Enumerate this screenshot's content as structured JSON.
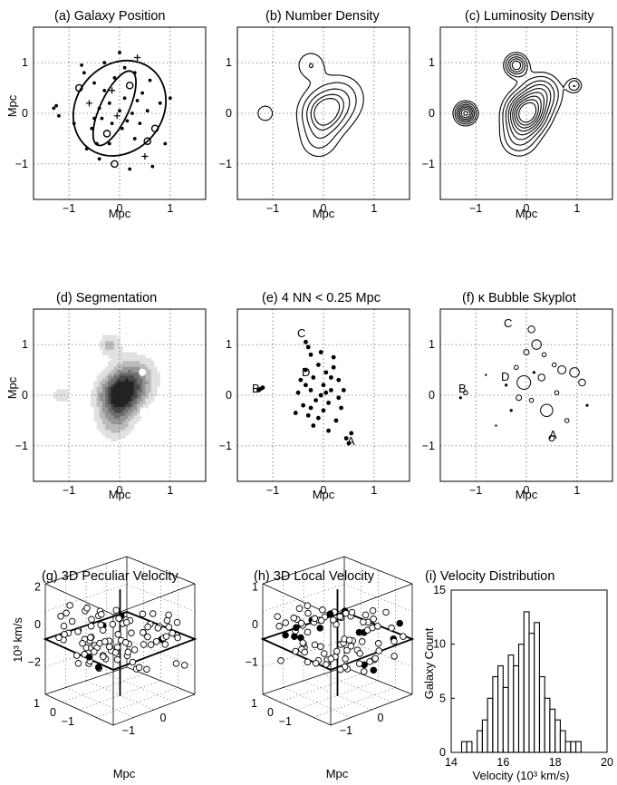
{
  "figure": {
    "panels": {
      "a": {
        "title": "(a)  Galaxy  Position",
        "xlabel": "Mpc",
        "ylabel": "Mpc"
      },
      "b": {
        "title": "(b)  Number Density",
        "xlabel": "Mpc"
      },
      "c": {
        "title": "(c)  Luminosity Density",
        "xlabel": "Mpc"
      },
      "d": {
        "title": "(d)  Segmentation",
        "xlabel": "Mpc",
        "ylabel": "Mpc"
      },
      "e": {
        "title": "(e)  4 NN < 0.25 Mpc",
        "xlabel": "Mpc",
        "annotations": {
          "A": "A",
          "B": "B",
          "C": "C",
          "D": "D"
        }
      },
      "f": {
        "title": "(f)  κ Bubble Skyplot",
        "xlabel": "Mpc",
        "annotations": {
          "A": "A",
          "B": "B",
          "C": "C",
          "D": "D"
        }
      },
      "g": {
        "title": "(g) 3D Peculiar Velocity",
        "xlabel": "Mpc",
        "ylabel": "10³ km/s"
      },
      "h": {
        "title": "(h) 3D Local Velocity",
        "xlabel": "Mpc"
      },
      "i": {
        "title": "(i) Velocity Distribution",
        "xlabel": "Velocity (10³ km/s)",
        "ylabel": "Galaxy Count"
      }
    },
    "ticks": {
      "pos_x": [
        "−1",
        "0",
        "1"
      ],
      "pos_y": [
        "1",
        "0",
        "−1"
      ],
      "g_z": [
        "2",
        "0",
        "−2"
      ],
      "h_z": [
        "1",
        "0",
        "−1"
      ],
      "base_a": [
        "1",
        "0",
        "−1"
      ],
      "base_b": [
        "−1",
        "0"
      ],
      "hist_x": [
        "14",
        "16",
        "18",
        "20"
      ],
      "hist_y": [
        "15",
        "10",
        "5",
        "0"
      ]
    }
  },
  "chart_data": [
    {
      "type": "scatter",
      "panel": "a",
      "title": "(a)  Galaxy  Position",
      "xlabel": "Mpc",
      "ylabel": "Mpc",
      "xlim": [
        -1.7,
        1.7
      ],
      "ylim": [
        -1.7,
        1.7
      ],
      "points": [
        [
          -1.25,
          0.15
        ],
        [
          -1.2,
          -0.05
        ],
        [
          -1.3,
          0.1
        ],
        [
          -0.8,
          0.5
        ],
        [
          -0.7,
          0.8
        ],
        [
          -0.6,
          0.2
        ],
        [
          -0.55,
          -0.3
        ],
        [
          -0.5,
          0.6
        ],
        [
          -0.45,
          -0.6
        ],
        [
          -0.4,
          0.1
        ],
        [
          -0.35,
          -0.1
        ],
        [
          -0.3,
          0.45
        ],
        [
          -0.25,
          -0.4
        ],
        [
          -0.2,
          0.2
        ],
        [
          -0.15,
          -0.2
        ],
        [
          -0.1,
          0.7
        ],
        [
          -0.05,
          -0.05
        ],
        [
          0.0,
          0.05
        ],
        [
          0.05,
          -0.3
        ],
        [
          0.1,
          0.3
        ],
        [
          0.15,
          -0.15
        ],
        [
          0.2,
          0.55
        ],
        [
          0.25,
          0.0
        ],
        [
          0.3,
          -0.5
        ],
        [
          0.35,
          0.25
        ],
        [
          0.4,
          -0.2
        ],
        [
          0.45,
          0.4
        ],
        [
          0.5,
          -0.85
        ],
        [
          0.55,
          0.05
        ],
        [
          0.6,
          0.65
        ],
        [
          0.7,
          -0.3
        ],
        [
          0.8,
          0.2
        ],
        [
          0.9,
          -0.6
        ],
        [
          1.0,
          0.3
        ],
        [
          -0.9,
          -0.2
        ],
        [
          -0.65,
          -0.7
        ],
        [
          -0.3,
          1.0
        ],
        [
          0.0,
          1.2
        ],
        [
          0.35,
          1.1
        ],
        [
          -0.1,
          -1.0
        ],
        [
          0.2,
          -1.1
        ],
        [
          -0.4,
          -0.9
        ],
        [
          0.65,
          -1.05
        ],
        [
          -0.75,
          0.95
        ],
        [
          0.1,
          0.9
        ],
        [
          -0.2,
          -0.6
        ],
        [
          0.3,
          0.8
        ],
        [
          -0.5,
          -0.1
        ],
        [
          0.55,
          -0.55
        ],
        [
          -0.15,
          0.45
        ]
      ],
      "ellipses": [
        {
          "cx": 0.0,
          "cy": 0.1,
          "rx": 1.0,
          "ry": 0.85,
          "angle_deg": 50
        },
        {
          "cx": -0.1,
          "cy": 0.1,
          "rx": 0.8,
          "ry": 0.28,
          "angle_deg": 65
        }
      ]
    },
    {
      "type": "contour",
      "panel": "b",
      "title": "(b)  Number Density",
      "xlim": [
        -1.7,
        1.7
      ],
      "ylim": [
        -1.7,
        1.7
      ],
      "peaks": [
        {
          "x": 0.0,
          "y": 0.0,
          "amp": 1.0,
          "s": 0.28
        },
        {
          "x": 0.35,
          "y": 0.3,
          "amp": 0.5,
          "s": 0.3
        },
        {
          "x": -0.25,
          "y": 0.95,
          "amp": 0.35,
          "s": 0.2
        },
        {
          "x": -1.15,
          "y": 0.0,
          "amp": 0.3,
          "s": 0.14
        },
        {
          "x": -0.1,
          "y": -0.55,
          "amp": 0.35,
          "s": 0.25
        }
      ],
      "levels": [
        0.18,
        0.35,
        0.55,
        0.75,
        0.9
      ]
    },
    {
      "type": "contour",
      "panel": "c",
      "title": "(c)  Luminosity Density",
      "xlim": [
        -1.7,
        1.7
      ],
      "ylim": [
        -1.7,
        1.7
      ],
      "peaks": [
        {
          "x": 0.0,
          "y": 0.0,
          "amp": 1.0,
          "s": 0.25
        },
        {
          "x": 0.3,
          "y": 0.4,
          "amp": 0.45,
          "s": 0.25
        },
        {
          "x": -1.2,
          "y": 0.0,
          "amp": 0.75,
          "s": 0.13
        },
        {
          "x": -0.2,
          "y": 0.95,
          "amp": 0.6,
          "s": 0.14
        },
        {
          "x": 0.95,
          "y": 0.55,
          "amp": 0.3,
          "s": 0.1
        },
        {
          "x": -0.15,
          "y": -0.5,
          "amp": 0.3,
          "s": 0.25
        }
      ],
      "levels": [
        0.12,
        0.2,
        0.3,
        0.4,
        0.5,
        0.6,
        0.7,
        0.8,
        0.9
      ]
    },
    {
      "type": "heatmap",
      "panel": "d",
      "title": "(d)  Segmentation",
      "xlim": [
        -1.7,
        1.7
      ],
      "ylim": [
        -1.7,
        1.7
      ],
      "peaks": [
        {
          "x": 0.0,
          "y": 0.0,
          "amp": 1.0,
          "s": 0.28
        },
        {
          "x": 0.3,
          "y": 0.35,
          "amp": 0.5,
          "s": 0.3
        },
        {
          "x": -0.2,
          "y": 1.0,
          "amp": 0.35,
          "s": 0.15
        },
        {
          "x": -1.15,
          "y": 0.0,
          "amp": 0.3,
          "s": 0.12
        },
        {
          "x": -0.1,
          "y": -0.55,
          "amp": 0.35,
          "s": 0.25
        }
      ],
      "levels": [
        0.15,
        0.3,
        0.45,
        0.6,
        0.75,
        0.9
      ]
    },
    {
      "type": "scatter",
      "panel": "e",
      "title": "(e)  4 NN < 0.25 Mpc",
      "xlim": [
        -1.7,
        1.7
      ],
      "ylim": [
        -1.7,
        1.7
      ],
      "points": [
        [
          -1.25,
          0.12
        ],
        [
          -1.2,
          0.15
        ],
        [
          -1.28,
          0.1
        ],
        [
          -0.35,
          1.05
        ],
        [
          -0.3,
          0.95
        ],
        [
          -0.25,
          0.8
        ],
        [
          0.45,
          -0.85
        ],
        [
          0.5,
          -0.95
        ],
        [
          0.55,
          -0.75
        ],
        [
          -0.45,
          0.3
        ],
        [
          -0.4,
          -0.2
        ],
        [
          -0.35,
          0.5
        ],
        [
          -0.3,
          -0.4
        ],
        [
          -0.25,
          0.1
        ],
        [
          -0.2,
          0.35
        ],
        [
          -0.15,
          -0.1
        ],
        [
          -0.1,
          0.6
        ],
        [
          -0.05,
          0.0
        ],
        [
          0.0,
          0.2
        ],
        [
          0.0,
          -0.3
        ],
        [
          0.05,
          0.45
        ],
        [
          0.1,
          -0.15
        ],
        [
          0.15,
          0.1
        ],
        [
          0.2,
          0.55
        ],
        [
          0.25,
          -0.5
        ],
        [
          0.3,
          0.3
        ],
        [
          0.35,
          -0.25
        ],
        [
          -0.5,
          0.05
        ],
        [
          -0.55,
          -0.35
        ],
        [
          0.4,
          0.1
        ],
        [
          -0.2,
          -0.6
        ],
        [
          0.1,
          -0.7
        ],
        [
          0.2,
          0.75
        ],
        [
          -0.05,
          0.85
        ],
        [
          0.3,
          -0.05
        ],
        [
          -0.35,
          0.2
        ],
        [
          0.05,
          0.05
        ],
        [
          -0.1,
          -0.45
        ],
        [
          0.15,
          0.35
        ],
        [
          -0.25,
          -0.25
        ]
      ]
    },
    {
      "type": "bubble",
      "panel": "f",
      "title": "(f)  κ Bubble Skyplot",
      "xlim": [
        -1.7,
        1.7
      ],
      "ylim": [
        -1.7,
        1.7
      ],
      "points": [
        [
          0.1,
          1.3,
          5
        ],
        [
          0.2,
          1.0,
          7
        ],
        [
          0.0,
          0.85,
          4
        ],
        [
          0.95,
          0.45,
          7
        ],
        [
          1.1,
          0.25,
          5
        ],
        [
          0.7,
          0.5,
          6
        ],
        [
          0.4,
          -0.3,
          9
        ],
        [
          -0.05,
          0.25,
          10
        ],
        [
          0.3,
          0.35,
          5
        ],
        [
          -0.2,
          0.55,
          3
        ],
        [
          -1.2,
          0.05,
          3
        ],
        [
          -1.3,
          -0.05,
          2
        ],
        [
          0.5,
          -0.85,
          4
        ],
        [
          0.6,
          0.05,
          3
        ],
        [
          -0.4,
          0.2,
          2
        ],
        [
          0.8,
          -0.5,
          3
        ],
        [
          -0.3,
          -0.3,
          2
        ],
        [
          0.1,
          -0.1,
          3
        ],
        [
          -0.6,
          -0.6,
          1.5
        ],
        [
          1.2,
          -0.2,
          2
        ],
        [
          -0.8,
          0.4,
          1.5
        ],
        [
          0.35,
          0.8,
          3
        ],
        [
          -0.15,
          -0.05,
          4
        ],
        [
          0.55,
          0.6,
          3
        ],
        [
          0.15,
          0.45,
          2
        ]
      ]
    },
    {
      "type": "scatter3d",
      "panel": "g",
      "title": "(g) 3D Peculiar Velocity",
      "xlabel": "Mpc",
      "ylabel": "10³ km/s",
      "zlim": [
        -2,
        2
      ]
    },
    {
      "type": "scatter3d",
      "panel": "h",
      "title": "(h) 3D Local Velocity",
      "xlabel": "Mpc",
      "zlim": [
        -1,
        1
      ]
    },
    {
      "type": "bar",
      "panel": "i",
      "title": "(i) Velocity Distribution",
      "xlabel": "Velocity (10³ km/s)",
      "ylabel": "Galaxy Count",
      "xlim": [
        14,
        20
      ],
      "ylim": [
        0,
        15
      ],
      "bin_width": 0.2,
      "bins": [
        14.4,
        14.6,
        14.8,
        15.0,
        15.2,
        15.4,
        15.6,
        15.8,
        16.0,
        16.2,
        16.4,
        16.6,
        16.8,
        17.0,
        17.2,
        17.4,
        17.6,
        17.8,
        18.0,
        18.2,
        18.4,
        18.6,
        18.8
      ],
      "counts": [
        1,
        1,
        0,
        2,
        3,
        5,
        7,
        8,
        6,
        9,
        8,
        10,
        13,
        11,
        12,
        7,
        5,
        4,
        3,
        2,
        1,
        1,
        1
      ]
    }
  ]
}
